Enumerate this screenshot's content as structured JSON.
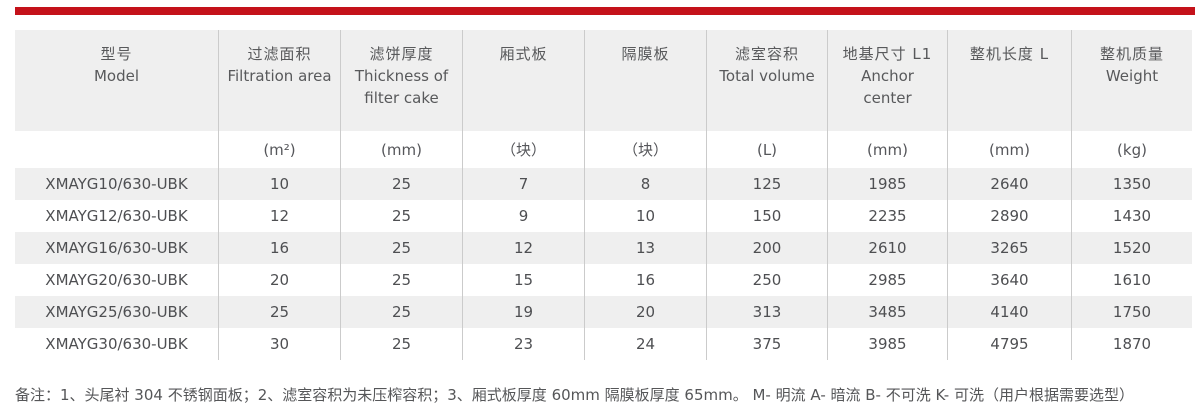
{
  "page": {
    "accent_color": "#c4121a",
    "stripe_color": "#efefef",
    "divider_color": "#cbcbcb"
  },
  "table": {
    "header": [
      {
        "zh": "型号",
        "en": "Model"
      },
      {
        "zh": "过滤面积",
        "en": "Filtration area"
      },
      {
        "zh": "滤饼厚度",
        "en": "Thickness of filter cake"
      },
      {
        "zh": "厢式板",
        "en": ""
      },
      {
        "zh": "隔膜板",
        "en": ""
      },
      {
        "zh": "滤室容积",
        "en": "Total volume"
      },
      {
        "zh": "地基尺寸 L1",
        "en": "Anchor center"
      },
      {
        "zh": "整机长度 L",
        "en": ""
      },
      {
        "zh": "整机质量",
        "en": "Weight"
      }
    ],
    "units": [
      "",
      "(m²)",
      "(mm)",
      "（块）",
      "（块）",
      "(L)",
      "(mm)",
      "(mm)",
      "(kg)"
    ],
    "rows": [
      [
        "XMAYG10/630-UBK",
        "10",
        "25",
        "7",
        "8",
        "125",
        "1985",
        "2640",
        "1350"
      ],
      [
        "XMAYG12/630-UBK",
        "12",
        "25",
        "9",
        "10",
        "150",
        "2235",
        "2890",
        "1430"
      ],
      [
        "XMAYG16/630-UBK",
        "16",
        "25",
        "12",
        "13",
        "200",
        "2610",
        "3265",
        "1520"
      ],
      [
        "XMAYG20/630-UBK",
        "20",
        "25",
        "15",
        "16",
        "250",
        "2985",
        "3640",
        "1610"
      ],
      [
        "XMAYG25/630-UBK",
        "25",
        "25",
        "19",
        "20",
        "313",
        "3485",
        "4140",
        "1750"
      ],
      [
        "XMAYG30/630-UBK",
        "30",
        "25",
        "23",
        "24",
        "375",
        "3985",
        "4795",
        "1870"
      ]
    ]
  },
  "note": {
    "text": "备注：1、头尾衬 304 不锈钢面板；2、滤室容积为未压榨容积；3、厢式板厚度 60mm 隔膜板厚度 65mm。 M- 明流 A- 暗流 B- 不可洗 K- 可洗（用户根据需要选型）"
  }
}
